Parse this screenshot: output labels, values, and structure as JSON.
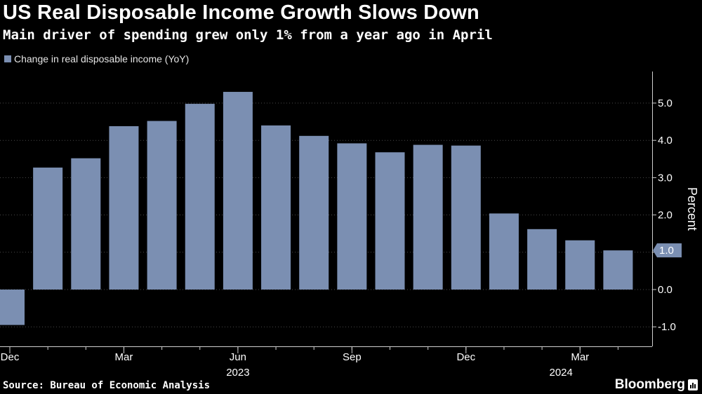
{
  "header": {
    "title": "US Real Disposable Income Growth Slows Down",
    "subtitle": "Main driver of spending grew only 1% from a year ago in April"
  },
  "footer": {
    "source": "Source: Bureau of Economic Analysis",
    "brand": "Bloomberg"
  },
  "colors": {
    "background": "#000000",
    "bar": "#7b8fb2",
    "grid": "#4a4a4a",
    "text": "#ffffff"
  },
  "chart_data": {
    "type": "bar",
    "legend": [
      "Change in real disposable income (YoY)"
    ],
    "legend_position": "top-left",
    "ylabel": "Percent",
    "y_axis_side": "right",
    "ylim": [
      -1.5,
      5.8
    ],
    "yticks": [
      -1.0,
      0.0,
      1.0,
      2.0,
      3.0,
      4.0,
      5.0
    ],
    "ytick_labels": [
      "-1.0",
      "0.0",
      "1.0",
      "2.0",
      "3.0",
      "4.0",
      "5.0"
    ],
    "grid": "horizontal dotted",
    "categories": [
      "2022-12",
      "2023-01",
      "2023-02",
      "2023-03",
      "2023-04",
      "2023-05",
      "2023-06",
      "2023-07",
      "2023-08",
      "2023-09",
      "2023-10",
      "2023-11",
      "2023-12",
      "2024-01",
      "2024-02",
      "2024-03",
      "2024-04"
    ],
    "series": [
      {
        "name": "Change in real disposable income (YoY)",
        "values": [
          -0.95,
          3.27,
          3.52,
          4.38,
          4.52,
          4.98,
          5.3,
          4.4,
          4.12,
          3.92,
          3.68,
          3.88,
          3.86,
          2.04,
          1.62,
          1.32,
          1.05
        ]
      }
    ],
    "x_tick_labels": [
      {
        "index": 0,
        "label": "Dec"
      },
      {
        "index": 3,
        "label": "Mar"
      },
      {
        "index": 6,
        "label": "Jun"
      },
      {
        "index": 9,
        "label": "Sep"
      },
      {
        "index": 12,
        "label": "Dec"
      },
      {
        "index": 15,
        "label": "Mar"
      }
    ],
    "x_year_labels": [
      {
        "index": 6,
        "label": "2023"
      },
      {
        "index": 14.5,
        "label": "2024"
      }
    ],
    "last_value_label": "1.0"
  }
}
